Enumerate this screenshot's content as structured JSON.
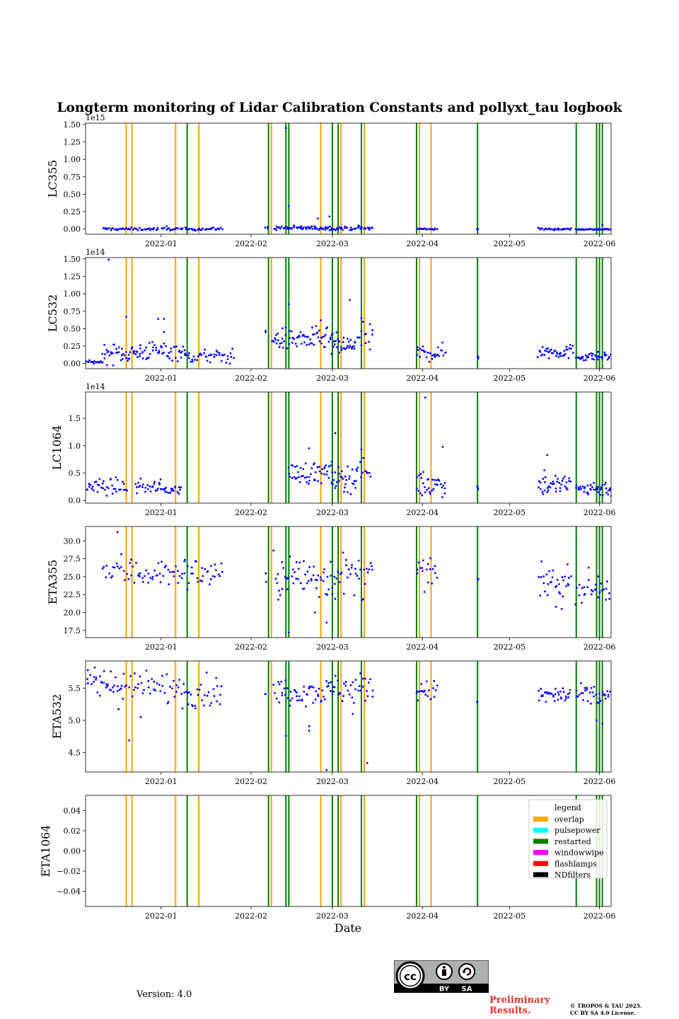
{
  "figure": {
    "title": "Longterm monitoring of Lidar Calibration Constants and pollyxt_tau logbook",
    "xlabel": "Date",
    "version_text": "Version: 4.0",
    "preliminary_text": [
      "Preliminary",
      "Results."
    ],
    "copyright_text": [
      "© TROPOS & TAU 2025.",
      "CC BY SA 4.0 License."
    ],
    "license_badge": {
      "top": "cc",
      "labels": [
        "BY",
        "SA"
      ]
    }
  },
  "colors": {
    "points": "#0000ff",
    "overlap": "#ffa500",
    "pulsepower": "#00ffff",
    "restarted": "#008000",
    "windowwipe": "#ff00ff",
    "flashlamps": "#ff0000",
    "NDfilters": "#000000",
    "prelim": "#e8322c"
  },
  "chart_data": {
    "type": "scatter",
    "title": "Longterm monitoring of Lidar Calibration Constants and pollyxt_tau logbook",
    "xlabel": "Date",
    "xlim": [
      "2021-12-06",
      "2022-06-05"
    ],
    "x_ticks": [
      "2022-01-01",
      "2022-02-01",
      "2022-03-01",
      "2022-04-01",
      "2022-05-01",
      "2022-06-01"
    ],
    "x_tick_labels": [
      "2022-01",
      "2022-02",
      "2022-03",
      "2022-04",
      "2022-05",
      "2022-06"
    ],
    "grid": false,
    "events": {
      "overlap": [
        "2021-12-20",
        "2021-12-22",
        "2022-01-06",
        "2022-01-14",
        "2022-02-08",
        "2022-02-25",
        "2022-03-04",
        "2022-03-12",
        "2022-03-31",
        "2022-04-04"
      ],
      "restarted": [
        "2022-01-10",
        "2022-02-07",
        "2022-02-13",
        "2022-02-14",
        "2022-03-01",
        "2022-03-03",
        "2022-03-11",
        "2022-03-30",
        "2022-04-20",
        "2022-05-24",
        "2022-05-31",
        "2022-06-01",
        "2022-06-02"
      ]
    },
    "legend": {
      "title": "legend",
      "position": "upper right of last panel",
      "entries": [
        "overlap",
        "pulsepower",
        "restarted",
        "windowwipe",
        "flashlamps",
        "NDfilters"
      ]
    },
    "panels": [
      {
        "ylabel": "LC355",
        "offset_text": "1e15",
        "ylim": [
          -0.075,
          1.52
        ],
        "yticks": [
          0,
          0.25,
          0.5,
          0.75,
          1.0,
          1.25,
          1.5
        ],
        "ytick_labels": [
          "0.00",
          "0.25",
          "0.50",
          "0.75",
          "1.00",
          "1.25",
          "1.50"
        ],
        "segments": [
          {
            "start": "2021-12-12",
            "end": "2021-12-31",
            "base": 0.0,
            "noise": 0.01,
            "count": 45
          },
          {
            "start": "2022-01-01",
            "end": "2022-01-22",
            "base": 0.0,
            "noise": 0.01,
            "count": 50
          },
          {
            "start": "2022-02-06",
            "end": "2022-02-07",
            "base": 0.02,
            "noise": 0.01,
            "count": 3
          },
          {
            "start": "2022-02-09",
            "end": "2022-03-01",
            "base": 0.015,
            "noise": 0.015,
            "count": 60
          },
          {
            "start": "2022-03-01",
            "end": "2022-03-15",
            "base": 0.01,
            "noise": 0.012,
            "count": 35
          },
          {
            "start": "2022-03-30",
            "end": "2022-04-06",
            "base": 0.0,
            "noise": 0.008,
            "count": 20
          },
          {
            "start": "2022-04-20",
            "end": "2022-04-20",
            "base": 0.0,
            "noise": 0.005,
            "count": 2
          },
          {
            "start": "2022-05-11",
            "end": "2022-05-22",
            "base": 0.0,
            "noise": 0.008,
            "count": 30
          },
          {
            "start": "2022-05-24",
            "end": "2022-06-05",
            "base": -0.005,
            "noise": 0.005,
            "count": 40
          }
        ],
        "extra": [
          [
            "2022-02-13",
            1.45
          ],
          [
            "2022-02-14",
            0.33
          ],
          [
            "2022-02-24",
            0.15
          ],
          [
            "2022-02-28",
            0.18
          ],
          [
            "2022-03-10",
            0.05
          ],
          [
            "2022-01-03",
            0.04
          ],
          [
            "2022-06-02",
            0.06
          ]
        ]
      },
      {
        "ylabel": "LC532",
        "offset_text": "1e14",
        "ylim": [
          -0.075,
          1.52
        ],
        "yticks": [
          0,
          0.25,
          0.5,
          0.75,
          1.0,
          1.25,
          1.5
        ],
        "ytick_labels": [
          "0.00",
          "0.25",
          "0.50",
          "0.75",
          "1.00",
          "1.25",
          "1.50"
        ],
        "segments": [
          {
            "start": "2021-12-06",
            "end": "2021-12-12",
            "base": 0.02,
            "noise": 0.01,
            "count": 18
          },
          {
            "start": "2021-12-12",
            "end": "2021-12-25",
            "base": 0.15,
            "noise": 0.07,
            "count": 45
          },
          {
            "start": "2021-12-25",
            "end": "2022-01-09",
            "base": 0.18,
            "noise": 0.07,
            "count": 45
          },
          {
            "start": "2022-01-09",
            "end": "2022-01-26",
            "base": 0.1,
            "noise": 0.05,
            "count": 45
          },
          {
            "start": "2022-02-08",
            "end": "2022-03-01",
            "base": 0.35,
            "noise": 0.08,
            "count": 70
          },
          {
            "start": "2022-03-01",
            "end": "2022-03-09",
            "base": 0.25,
            "noise": 0.08,
            "count": 30
          },
          {
            "start": "2022-03-09",
            "end": "2022-03-15",
            "base": 0.35,
            "noise": 0.1,
            "count": 15
          },
          {
            "start": "2022-03-30",
            "end": "2022-04-09",
            "base": 0.15,
            "noise": 0.06,
            "count": 30
          },
          {
            "start": "2022-04-20",
            "end": "2022-04-20",
            "base": 0.1,
            "noise": 0.03,
            "count": 4
          },
          {
            "start": "2022-05-11",
            "end": "2022-05-23",
            "base": 0.17,
            "noise": 0.05,
            "count": 40
          },
          {
            "start": "2022-05-24",
            "end": "2022-06-05",
            "base": 0.1,
            "noise": 0.03,
            "count": 40
          }
        ],
        "extra": [
          [
            "2021-12-14",
            1.49
          ],
          [
            "2021-12-20",
            0.67
          ],
          [
            "2021-12-31",
            0.64
          ],
          [
            "2022-01-02",
            0.64
          ],
          [
            "2022-01-02",
            0.45
          ],
          [
            "2022-02-14",
            0.85
          ],
          [
            "2022-02-25",
            0.62
          ],
          [
            "2022-03-07",
            0.91
          ],
          [
            "2022-03-11",
            0.65
          ],
          [
            "2022-02-06",
            0.45
          ],
          [
            "2022-02-06",
            0.47
          ]
        ]
      },
      {
        "ylabel": "LC1064",
        "offset_text": "1e14",
        "ylim": [
          -0.05,
          1.98
        ],
        "yticks": [
          0,
          0.5,
          1.0,
          1.5
        ],
        "ytick_labels": [
          "0.0",
          "0.5",
          "1.0",
          "1.5"
        ],
        "segments": [
          {
            "start": "2021-12-06",
            "end": "2021-12-20",
            "base": 0.25,
            "noise": 0.07,
            "count": 40
          },
          {
            "start": "2021-12-23",
            "end": "2022-01-01",
            "base": 0.25,
            "noise": 0.06,
            "count": 25
          },
          {
            "start": "2022-01-01",
            "end": "2022-01-08",
            "base": 0.2,
            "noise": 0.04,
            "count": 20
          },
          {
            "start": "2022-02-14",
            "end": "2022-03-01",
            "base": 0.5,
            "noise": 0.1,
            "count": 50
          },
          {
            "start": "2022-03-01",
            "end": "2022-03-09",
            "base": 0.4,
            "noise": 0.12,
            "count": 30
          },
          {
            "start": "2022-03-09",
            "end": "2022-03-14",
            "base": 0.55,
            "noise": 0.1,
            "count": 12
          },
          {
            "start": "2022-03-30",
            "end": "2022-04-09",
            "base": 0.3,
            "noise": 0.12,
            "count": 35
          },
          {
            "start": "2022-04-20",
            "end": "2022-04-20",
            "base": 0.25,
            "noise": 0.03,
            "count": 3
          },
          {
            "start": "2022-05-11",
            "end": "2022-05-22",
            "base": 0.28,
            "noise": 0.1,
            "count": 40
          },
          {
            "start": "2022-05-24",
            "end": "2022-06-05",
            "base": 0.22,
            "noise": 0.07,
            "count": 40
          }
        ],
        "extra": [
          [
            "2022-02-21",
            0.95
          ],
          [
            "2022-03-02",
            1.23
          ],
          [
            "2022-03-11",
            0.93
          ],
          [
            "2022-04-02",
            1.88
          ],
          [
            "2022-04-08",
            0.98
          ],
          [
            "2022-05-14",
            0.83
          ],
          [
            "2022-05-13",
            0.55
          ]
        ]
      },
      {
        "ylabel": "ETA355",
        "ylim": [
          16.5,
          32.0
        ],
        "yticks": [
          17.5,
          20.0,
          22.5,
          25.0,
          27.5,
          30.0
        ],
        "ytick_labels": [
          "17.5",
          "20.0",
          "22.5",
          "25.0",
          "27.5",
          "30.0"
        ],
        "segments": [
          {
            "start": "2021-12-12",
            "end": "2021-12-24",
            "base": 25.8,
            "noise": 1.2,
            "count": 25
          },
          {
            "start": "2021-12-24",
            "end": "2022-01-09",
            "base": 25.5,
            "noise": 1.0,
            "count": 35
          },
          {
            "start": "2022-01-09",
            "end": "2022-01-22",
            "base": 25.5,
            "noise": 1.1,
            "count": 30
          },
          {
            "start": "2022-02-06",
            "end": "2022-02-06",
            "base": 24.5,
            "noise": 0.8,
            "count": 2
          },
          {
            "start": "2022-02-09",
            "end": "2022-03-01",
            "base": 25.0,
            "noise": 1.6,
            "count": 55
          },
          {
            "start": "2022-03-01",
            "end": "2022-03-15",
            "base": 25.0,
            "noise": 1.6,
            "count": 35
          },
          {
            "start": "2022-03-30",
            "end": "2022-04-06",
            "base": 25.5,
            "noise": 1.0,
            "count": 18
          },
          {
            "start": "2022-04-20",
            "end": "2022-04-20",
            "base": 24.5,
            "noise": 0.2,
            "count": 2
          },
          {
            "start": "2022-05-11",
            "end": "2022-05-22",
            "base": 24.2,
            "noise": 1.0,
            "count": 30
          },
          {
            "start": "2022-05-24",
            "end": "2022-06-05",
            "base": 23.5,
            "noise": 1.0,
            "count": 30
          }
        ],
        "extra": [
          [
            "2021-12-17",
            31.2
          ],
          [
            "2022-02-14",
            17.2
          ],
          [
            "2022-02-27",
            18.6
          ],
          [
            "2022-02-23",
            20.0
          ],
          [
            "2022-05-19",
            20.5
          ],
          [
            "2022-05-21",
            26.7
          ],
          [
            "2022-05-17",
            20.8
          ]
        ]
      },
      {
        "ylabel": "ETA532",
        "ylim": [
          4.2,
          5.92
        ],
        "yticks": [
          4.5,
          5.0,
          5.5
        ],
        "ytick_labels": [
          "4.5",
          "5.0",
          "5.5"
        ],
        "segments": [
          {
            "start": "2021-12-06",
            "end": "2021-12-20",
            "base": 5.55,
            "noise": 0.15,
            "count": 40
          },
          {
            "start": "2021-12-21",
            "end": "2022-01-09",
            "base": 5.5,
            "noise": 0.13,
            "count": 40
          },
          {
            "start": "2022-01-09",
            "end": "2022-01-22",
            "base": 5.45,
            "noise": 0.12,
            "count": 30
          },
          {
            "start": "2022-02-06",
            "end": "2022-02-06",
            "base": 5.37,
            "noise": 0.04,
            "count": 2
          },
          {
            "start": "2022-02-09",
            "end": "2022-03-01",
            "base": 5.45,
            "noise": 0.1,
            "count": 55
          },
          {
            "start": "2022-03-01",
            "end": "2022-03-15",
            "base": 5.5,
            "noise": 0.12,
            "count": 35
          },
          {
            "start": "2022-03-30",
            "end": "2022-04-06",
            "base": 5.45,
            "noise": 0.08,
            "count": 20
          },
          {
            "start": "2022-04-20",
            "end": "2022-04-20",
            "base": 5.3,
            "noise": 0.02,
            "count": 2
          },
          {
            "start": "2022-05-11",
            "end": "2022-05-22",
            "base": 5.38,
            "noise": 0.08,
            "count": 35
          },
          {
            "start": "2022-05-24",
            "end": "2022-06-05",
            "base": 5.38,
            "noise": 0.08,
            "count": 35
          }
        ],
        "extra": [
          [
            "2021-12-21",
            4.69
          ],
          [
            "2022-02-13",
            4.76
          ],
          [
            "2022-02-21",
            4.91
          ],
          [
            "2022-02-21",
            4.84
          ],
          [
            "2022-02-27",
            4.23
          ],
          [
            "2022-03-13",
            4.34
          ],
          [
            "2022-06-02",
            4.95
          ],
          [
            "2022-05-31",
            5.0
          ],
          [
            "2021-12-25",
            5.05
          ],
          [
            "2022-03-08",
            5.1
          ]
        ]
      },
      {
        "ylabel": "ETA1064",
        "ylim": [
          -0.055,
          0.055
        ],
        "yticks": [
          -0.04,
          -0.02,
          0.0,
          0.02,
          0.04
        ],
        "ytick_labels": [
          "−0.04",
          "−0.02",
          "0.00",
          "0.02",
          "0.04"
        ],
        "segments": [],
        "extra": []
      }
    ]
  }
}
